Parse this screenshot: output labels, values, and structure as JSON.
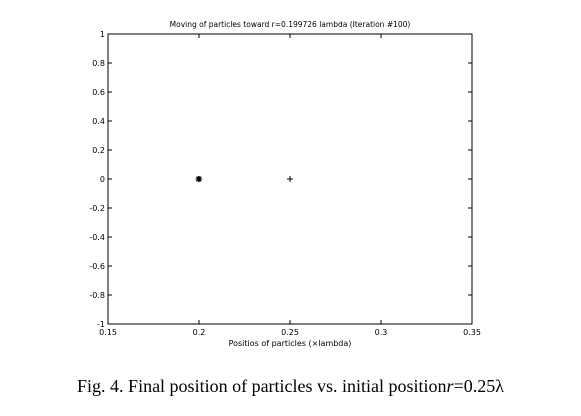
{
  "chart_data": {
    "type": "scatter",
    "title": "Moving of particles toward r=0.199726 lambda (Iteration #100)",
    "xlabel": "Positios of particles (×lambda)",
    "ylabel": "",
    "xlim": [
      0.15,
      0.35
    ],
    "ylim": [
      -1,
      1
    ],
    "x_ticks": [
      "0.15",
      "0.2",
      "0.25",
      "0.3",
      "0.35"
    ],
    "y_ticks": [
      "1",
      "0.8",
      "0.6",
      "0.4",
      "0.2",
      "0",
      "-0.2",
      "-0.4",
      "-0.6",
      "-0.8",
      "-1"
    ],
    "grid": false,
    "series": [
      {
        "marker": "asterisk",
        "points": [
          {
            "x": 0.1997,
            "y": 0
          },
          {
            "x": 0.1999,
            "y": 0
          },
          {
            "x": 0.2001,
            "y": 0
          }
        ]
      },
      {
        "marker": "plus",
        "points": [
          {
            "x": 0.25,
            "y": 0
          }
        ]
      }
    ]
  },
  "caption": {
    "prefix": "Fig. 4. Final position of particles vs. initial position",
    "var": "r",
    "suffix": "=0.25λ"
  }
}
